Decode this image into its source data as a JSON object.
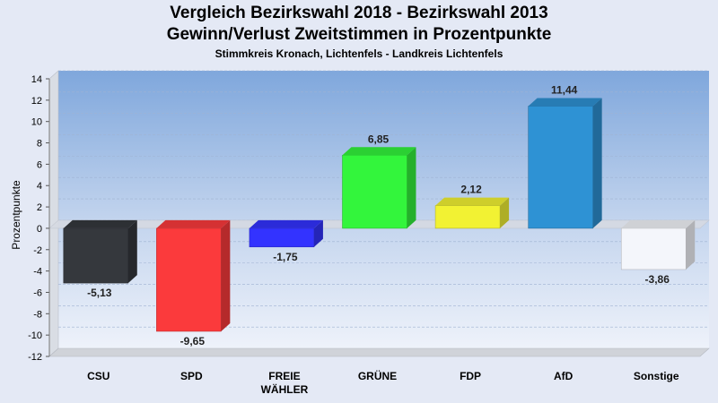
{
  "chart_data": {
    "type": "bar",
    "title": "Vergleich Bezirkswahl 2018 - Bezirkswahl 2013",
    "title2": "Gewinn/Verlust Zweitstimmen in Prozentpunkte",
    "subtitle": "Stimmkreis Kronach, Lichtenfels - Landkreis Lichtenfels",
    "ylabel": "Prozentpunkte",
    "xlabel": "",
    "ylim": [
      -12,
      14
    ],
    "yticks": [
      "14",
      "12",
      "10",
      "8",
      "6",
      "4",
      "2",
      "0",
      "-2",
      "-4",
      "-6",
      "-8",
      "-10",
      "-12"
    ],
    "categories": [
      "CSU",
      "SPD",
      "FREIE WÄHLER",
      "GRÜNE",
      "FDP",
      "AfD",
      "Sonstige"
    ],
    "category_lines": [
      [
        "CSU"
      ],
      [
        "SPD"
      ],
      [
        "FREIE",
        "WÄHLER"
      ],
      [
        "GRÜNE"
      ],
      [
        "FDP"
      ],
      [
        "AfD"
      ],
      [
        "Sonstige"
      ]
    ],
    "values": [
      -5.13,
      -9.65,
      -1.75,
      6.85,
      2.12,
      11.44,
      -3.86
    ],
    "value_labels": [
      "-5,13",
      "-9,65",
      "-1,75",
      "6,85",
      "2,12",
      "11,44",
      "-3,86"
    ],
    "colors": [
      "#35383d",
      "#fb3a3c",
      "#3333ff",
      "#33f53c",
      "#f2f233",
      "#2e92d4",
      "#f4f6fb"
    ],
    "grid": true,
    "legend": "none"
  }
}
